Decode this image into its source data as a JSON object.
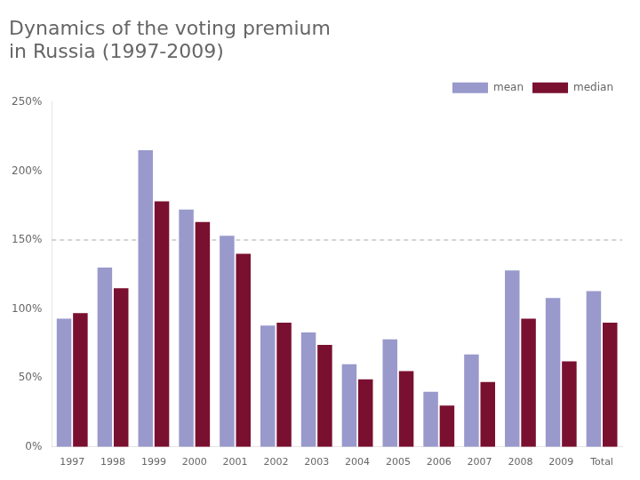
{
  "chart_data": {
    "type": "bar",
    "title": [
      "Dynamics of the voting premium",
      "in Russia (1997-2009)"
    ],
    "categories": [
      "1997",
      "1998",
      "1999",
      "2000",
      "2001",
      "2002",
      "2003",
      "2004",
      "2005",
      "2006",
      "2007",
      "2008",
      "2009",
      "Total"
    ],
    "series": [
      {
        "name": "mean",
        "color": "#9999cc",
        "values": [
          93,
          130,
          215,
          172,
          153,
          88,
          83,
          60,
          78,
          40,
          67,
          128,
          108,
          113
        ]
      },
      {
        "name": "median",
        "color": "#7a1030",
        "values": [
          97,
          115,
          178,
          163,
          140,
          90,
          74,
          49,
          55,
          30,
          47,
          93,
          62,
          90
        ]
      }
    ],
    "reference_lines": [
      150
    ],
    "ylim": [
      0,
      250
    ],
    "yticks": [
      {
        "value": 0,
        "label": "0%"
      },
      {
        "value": 50,
        "label": "50%"
      },
      {
        "value": 100,
        "label": "100%"
      },
      {
        "value": 150,
        "label": "150%"
      },
      {
        "value": 200,
        "label": "200%"
      },
      {
        "value": 250,
        "label": "250%"
      }
    ],
    "grid": false,
    "legend": "upper right"
  }
}
